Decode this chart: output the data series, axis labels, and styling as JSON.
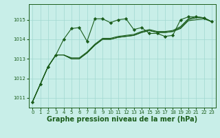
{
  "title": "Graphe pression niveau de la mer (hPa)",
  "bg_color": "#c8eee8",
  "grid_color": "#a0d8d0",
  "line_color": "#1a5c1a",
  "xlim": [
    -0.5,
    23.5
  ],
  "ylim": [
    1010.5,
    1015.8
  ],
  "yticks": [
    1011,
    1012,
    1013,
    1014,
    1015
  ],
  "xticks": [
    0,
    1,
    2,
    3,
    4,
    5,
    6,
    7,
    8,
    9,
    10,
    11,
    12,
    13,
    14,
    15,
    16,
    17,
    18,
    19,
    20,
    21,
    22,
    23
  ],
  "series": [
    [
      1010.8,
      1011.7,
      1012.6,
      1013.2,
      1014.0,
      1014.55,
      1014.6,
      1013.9,
      1015.05,
      1015.05,
      1014.85,
      1015.0,
      1015.05,
      1014.5,
      1014.6,
      1014.3,
      1014.3,
      1014.15,
      1014.2,
      1015.0,
      1015.15,
      1015.15,
      1015.1,
      1014.9
    ],
    [
      1010.8,
      1011.7,
      1012.6,
      1013.2,
      1013.2,
      1013.0,
      1013.0,
      1013.3,
      1013.7,
      1014.0,
      1014.0,
      1014.1,
      1014.15,
      1014.2,
      1014.35,
      1014.45,
      1014.35,
      1014.35,
      1014.4,
      1014.55,
      1014.95,
      1015.0,
      1015.05,
      1014.9
    ],
    [
      1010.8,
      1011.7,
      1012.6,
      1013.2,
      1013.2,
      1013.0,
      1013.0,
      1013.3,
      1013.7,
      1014.0,
      1014.0,
      1014.1,
      1014.15,
      1014.2,
      1014.35,
      1014.45,
      1014.35,
      1014.35,
      1014.4,
      1014.6,
      1015.0,
      1015.1,
      1015.1,
      1014.9
    ],
    [
      1010.8,
      1011.7,
      1012.6,
      1013.2,
      1013.2,
      1013.05,
      1013.05,
      1013.35,
      1013.75,
      1014.05,
      1014.05,
      1014.15,
      1014.2,
      1014.25,
      1014.4,
      1014.5,
      1014.4,
      1014.4,
      1014.45,
      1014.65,
      1015.05,
      1015.15,
      1015.1,
      1014.9
    ]
  ],
  "marker": "D",
  "marker_size": 2.2,
  "tick_fontsize": 5.0,
  "title_fontsize": 7.0,
  "title_fontweight": "bold",
  "linewidth": 0.8
}
